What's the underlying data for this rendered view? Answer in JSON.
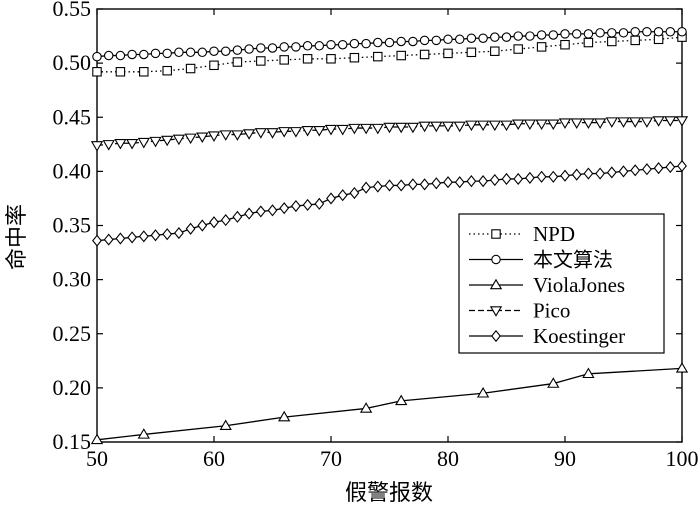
{
  "chart_data": {
    "type": "line",
    "title": "",
    "xlabel": "假警报数",
    "ylabel": "命中率",
    "xlim": [
      50,
      100
    ],
    "ylim": [
      0.15,
      0.55
    ],
    "xticks": [
      50,
      60,
      70,
      80,
      90,
      100
    ],
    "yticks": [
      0.15,
      0.2,
      0.25,
      0.3,
      0.35,
      0.4,
      0.45,
      0.5,
      0.55
    ],
    "xtick_labels": [
      "50",
      "60",
      "70",
      "80",
      "90",
      "100"
    ],
    "ytick_labels": [
      "0.15",
      "0.20",
      "0.25",
      "0.30",
      "0.35",
      "0.40",
      "0.45",
      "0.50",
      "0.55"
    ],
    "grid": false,
    "legend_position": "center-right",
    "series": [
      {
        "name": "NPD",
        "line_style": "dotted",
        "marker": "square",
        "x": [
          50,
          52,
          54,
          56,
          58,
          60,
          62,
          64,
          66,
          68,
          70,
          72,
          74,
          76,
          78,
          80,
          82,
          84,
          86,
          88,
          90,
          92,
          94,
          96,
          98,
          100
        ],
        "values": [
          0.492,
          0.492,
          0.492,
          0.493,
          0.495,
          0.498,
          0.501,
          0.502,
          0.503,
          0.504,
          0.504,
          0.505,
          0.506,
          0.507,
          0.508,
          0.509,
          0.51,
          0.511,
          0.513,
          0.515,
          0.517,
          0.519,
          0.52,
          0.521,
          0.522,
          0.524
        ]
      },
      {
        "name": "本文算法",
        "line_style": "solid",
        "marker": "circle",
        "x": [
          50,
          51,
          52,
          53,
          54,
          55,
          56,
          57,
          58,
          59,
          60,
          61,
          62,
          63,
          64,
          65,
          66,
          67,
          68,
          69,
          70,
          71,
          72,
          73,
          74,
          75,
          76,
          77,
          78,
          79,
          80,
          81,
          82,
          83,
          84,
          85,
          86,
          87,
          88,
          89,
          90,
          91,
          92,
          93,
          94,
          95,
          96,
          97,
          98,
          99,
          100
        ],
        "values": [
          0.506,
          0.507,
          0.507,
          0.508,
          0.508,
          0.509,
          0.509,
          0.51,
          0.51,
          0.51,
          0.511,
          0.511,
          0.512,
          0.513,
          0.514,
          0.514,
          0.515,
          0.515,
          0.516,
          0.516,
          0.517,
          0.517,
          0.518,
          0.518,
          0.519,
          0.519,
          0.52,
          0.52,
          0.521,
          0.521,
          0.522,
          0.522,
          0.523,
          0.523,
          0.524,
          0.524,
          0.525,
          0.525,
          0.526,
          0.526,
          0.527,
          0.527,
          0.527,
          0.528,
          0.528,
          0.528,
          0.529,
          0.529,
          0.529,
          0.529,
          0.529
        ]
      },
      {
        "name": "ViolaJones",
        "line_style": "solid",
        "marker": "triangle-up",
        "x": [
          50,
          54,
          61,
          66,
          73,
          76,
          83,
          89,
          92,
          100
        ],
        "values": [
          0.152,
          0.157,
          0.165,
          0.173,
          0.181,
          0.188,
          0.195,
          0.204,
          0.213,
          0.218
        ]
      },
      {
        "name": "Pico",
        "line_style": "dashed",
        "marker": "triangle-down",
        "x": [
          50,
          51,
          52,
          53,
          54,
          55,
          56,
          57,
          58,
          59,
          60,
          61,
          62,
          63,
          64,
          65,
          66,
          67,
          68,
          69,
          70,
          71,
          72,
          73,
          74,
          75,
          76,
          77,
          78,
          79,
          80,
          81,
          82,
          83,
          84,
          85,
          86,
          87,
          88,
          89,
          90,
          91,
          92,
          93,
          94,
          95,
          96,
          97,
          98,
          99,
          100
        ],
        "values": [
          0.424,
          0.425,
          0.426,
          0.426,
          0.427,
          0.428,
          0.429,
          0.43,
          0.431,
          0.432,
          0.433,
          0.434,
          0.434,
          0.435,
          0.436,
          0.436,
          0.437,
          0.437,
          0.438,
          0.438,
          0.439,
          0.439,
          0.44,
          0.44,
          0.44,
          0.441,
          0.441,
          0.441,
          0.442,
          0.442,
          0.442,
          0.442,
          0.443,
          0.443,
          0.443,
          0.443,
          0.444,
          0.444,
          0.444,
          0.444,
          0.445,
          0.445,
          0.445,
          0.445,
          0.446,
          0.446,
          0.446,
          0.446,
          0.447,
          0.447,
          0.447
        ]
      },
      {
        "name": "Koestinger",
        "line_style": "solid",
        "marker": "diamond",
        "x": [
          50,
          51,
          52,
          53,
          54,
          55,
          56,
          57,
          58,
          59,
          60,
          61,
          62,
          63,
          64,
          65,
          66,
          67,
          68,
          69,
          70,
          71,
          72,
          73,
          74,
          75,
          76,
          77,
          78,
          79,
          80,
          81,
          82,
          83,
          84,
          85,
          86,
          87,
          88,
          89,
          90,
          91,
          92,
          93,
          94,
          95,
          96,
          97,
          98,
          99,
          100
        ],
        "values": [
          0.336,
          0.337,
          0.338,
          0.339,
          0.34,
          0.341,
          0.342,
          0.343,
          0.347,
          0.35,
          0.353,
          0.355,
          0.358,
          0.361,
          0.363,
          0.364,
          0.366,
          0.368,
          0.369,
          0.37,
          0.375,
          0.378,
          0.38,
          0.385,
          0.386,
          0.387,
          0.387,
          0.388,
          0.388,
          0.389,
          0.39,
          0.39,
          0.391,
          0.391,
          0.392,
          0.393,
          0.393,
          0.394,
          0.395,
          0.395,
          0.396,
          0.397,
          0.398,
          0.398,
          0.399,
          0.4,
          0.401,
          0.402,
          0.403,
          0.404,
          0.405
        ]
      }
    ]
  }
}
